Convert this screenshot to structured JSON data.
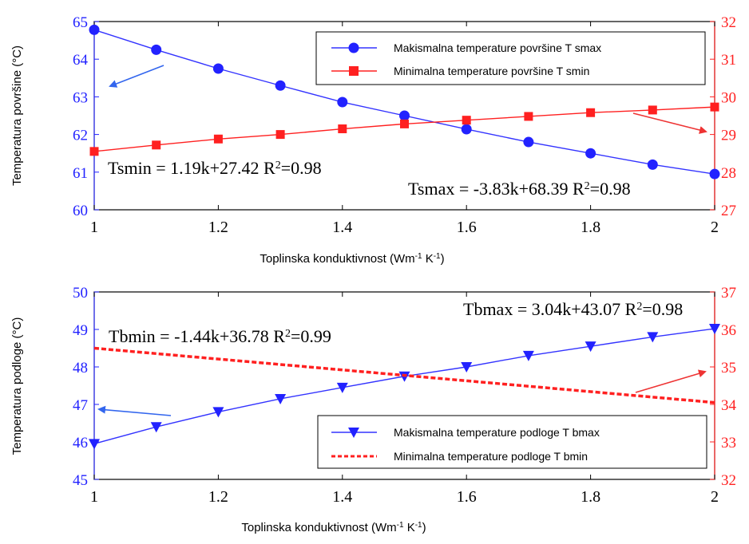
{
  "colors": {
    "left_axis": "#2222ff",
    "right_axis": "#ff2222",
    "series_blue": "#3333ff",
    "series_red": "#ff2020",
    "arrow_blue": "#3366ee",
    "arrow_red": "#ee3333"
  },
  "chart_data": [
    {
      "type": "line",
      "title": "",
      "xlabel": "Toplinska konduktivnost (Wm-1K-1)",
      "ylabel": "Temperatura površine (°C)",
      "xlim": [
        1,
        2
      ],
      "ylim": [
        60,
        65
      ],
      "y2lim": [
        27,
        32
      ],
      "x_ticks": [
        "1",
        "1.2",
        "1.4",
        "1.6",
        "1.8",
        "2"
      ],
      "y_ticks": [
        "60",
        "61",
        "62",
        "63",
        "64",
        "65"
      ],
      "y2_ticks": [
        "27",
        "28",
        "29",
        "30",
        "31",
        "32"
      ],
      "x": [
        1.0,
        1.1,
        1.2,
        1.3,
        1.4,
        1.5,
        1.6,
        1.7,
        1.8,
        1.9,
        2.0
      ],
      "series": [
        {
          "name": "Makismalna temperature površine T smax",
          "axis": "left",
          "marker": "circle",
          "values": [
            64.78,
            64.25,
            63.75,
            63.3,
            62.86,
            62.5,
            62.14,
            61.8,
            61.5,
            61.2,
            60.95
          ]
        },
        {
          "name": "Minimalna temperature površine T smin",
          "axis": "right",
          "marker": "square",
          "values": [
            28.55,
            28.72,
            28.88,
            29.0,
            29.15,
            29.28,
            29.38,
            29.48,
            29.58,
            29.65,
            29.73
          ]
        }
      ],
      "annotations": [
        {
          "text": "Tsmin = 1.19k+27.42  R2=0.98"
        },
        {
          "text": "Tsmax = -3.83k+68.39 R2=0.98"
        }
      ],
      "legend": "top-right",
      "grid": false
    },
    {
      "type": "line",
      "title": "",
      "xlabel": "Toplinska konduktivnost (Wm-1K-1)",
      "ylabel": "Temperatura podloge  (°C)",
      "xlim": [
        1,
        2
      ],
      "ylim": [
        45,
        50
      ],
      "y2lim": [
        32,
        37
      ],
      "x_ticks": [
        "1",
        "1.2",
        "1.4",
        "1.6",
        "1.8",
        "2"
      ],
      "y_ticks": [
        "45",
        "46",
        "47",
        "48",
        "49",
        "50"
      ],
      "y2_ticks": [
        "32",
        "33",
        "34",
        "35",
        "36",
        "37"
      ],
      "x": [
        1.0,
        1.1,
        1.2,
        1.3,
        1.4,
        1.5,
        1.6,
        1.7,
        1.8,
        1.9,
        2.0
      ],
      "series": [
        {
          "name": "Makismalna temperature  podloge T bmax",
          "axis": "left",
          "marker": "triangle-down",
          "values": [
            45.95,
            46.4,
            46.8,
            47.15,
            47.45,
            47.75,
            48.0,
            48.3,
            48.55,
            48.8,
            49.02
          ]
        },
        {
          "name": "Minimalna temperature  podloge T bmin",
          "axis": "right",
          "marker": "none",
          "dashed": true,
          "xy": [
            [
              1.0,
              35.5
            ],
            [
              2.0,
              34.05
            ]
          ]
        }
      ],
      "annotations": [
        {
          "text": "Tbmax = 3.04k+43.07  R2=0.98"
        },
        {
          "text": "Tbmin = -1.44k+36.78  R2=0.99"
        }
      ],
      "legend": "bottom-right",
      "grid": false
    }
  ]
}
